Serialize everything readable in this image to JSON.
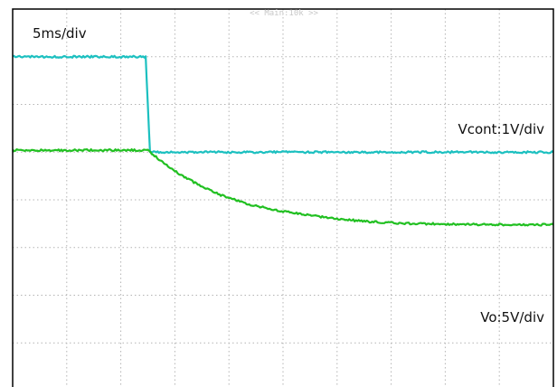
{
  "chart_data": {
    "type": "line",
    "title": "",
    "header": "<< Main:10k >>",
    "xlabel": "",
    "ylabel": "",
    "grid": true,
    "grid_divisions": {
      "x": 10,
      "y": 8
    },
    "xlim": [
      0,
      50
    ],
    "x_unit": "ms",
    "annotations": {
      "timebase": "5ms/div",
      "ch1_scale": "Vcont:1V/div",
      "ch2_scale": "Vo:5V/div"
    },
    "colors": {
      "vcont": "#1cc0c0",
      "vo": "#22c022",
      "grid": "#b4b4b4",
      "frame": "#000000"
    },
    "series": [
      {
        "id": "vcont",
        "scale_v_per_div": 1,
        "ylim": [
          -3,
          5
        ],
        "points": [
          [
            0,
            4.0
          ],
          [
            12.3,
            4.0
          ],
          [
            12.5,
            3.0
          ],
          [
            12.7,
            2.0
          ],
          [
            12.9,
            2.0
          ],
          [
            50,
            2.0
          ]
        ]
      },
      {
        "id": "vo",
        "scale_v_per_div": 5,
        "ylim": [
          -25,
          15
        ],
        "points": [
          [
            0,
            0.2
          ],
          [
            12.5,
            0.2
          ],
          [
            14,
            -1.2
          ],
          [
            15,
            -2.0
          ],
          [
            16,
            -2.7
          ],
          [
            17,
            -3.3
          ],
          [
            18,
            -3.9
          ],
          [
            19,
            -4.4
          ],
          [
            20,
            -4.8
          ],
          [
            22,
            -5.5
          ],
          [
            24,
            -6.0
          ],
          [
            26,
            -6.4
          ],
          [
            28,
            -6.7
          ],
          [
            30,
            -7.0
          ],
          [
            33,
            -7.3
          ],
          [
            36,
            -7.45
          ],
          [
            40,
            -7.55
          ],
          [
            45,
            -7.6
          ],
          [
            50,
            -7.6
          ]
        ]
      }
    ]
  }
}
